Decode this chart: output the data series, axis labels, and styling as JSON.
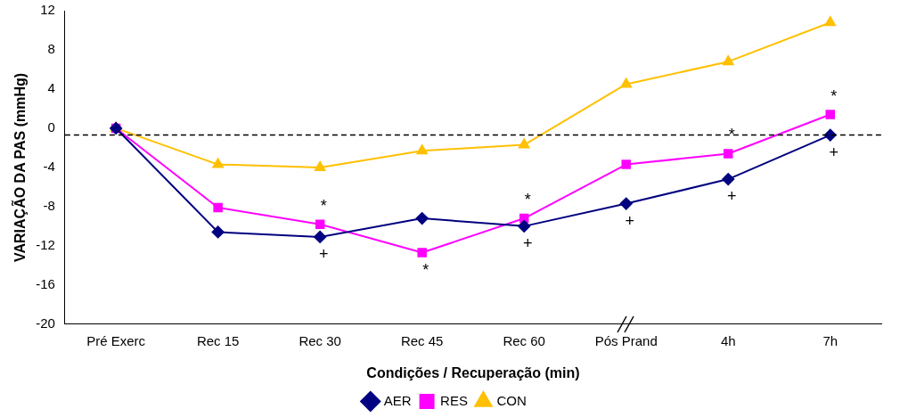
{
  "chart_data": {
    "type": "line",
    "xlabel": "Condições / Recuperação (min)",
    "ylabel": "VARIAÇÃO DA PAS (mmHg)",
    "categories": [
      "Pré Exerc",
      "Rec 15",
      "Rec 30",
      "Rec 45",
      "Rec 60",
      "Pós Prand",
      "4h",
      "7h"
    ],
    "series": [
      {
        "name": "AER",
        "color": "#000080",
        "marker": "diamond",
        "values": [
          0,
          -10.6,
          -11.1,
          -9.2,
          -10.0,
          -7.7,
          -5.2,
          -0.7
        ]
      },
      {
        "name": "RES",
        "color": "#ff00ff",
        "marker": "square",
        "values": [
          0,
          -8.1,
          -9.8,
          -12.7,
          -9.2,
          -3.7,
          -2.6,
          1.4
        ]
      },
      {
        "name": "CON",
        "color": "#ffc000",
        "marker": "triangle",
        "values": [
          0,
          -3.7,
          -4.0,
          -2.3,
          -1.7,
          4.5,
          6.8,
          10.8
        ]
      }
    ],
    "ylim": [
      -20,
      12
    ],
    "yticks": [
      -20,
      -16,
      -12,
      -8,
      -4,
      0,
      4,
      8,
      12
    ],
    "grid": false,
    "legend": "bottom",
    "ref_lines": [
      {
        "axis": "y",
        "value": -0.7,
        "line_style": "dashed",
        "color": "#000000"
      }
    ],
    "annotations": [
      {
        "text": "*",
        "x": "Rec 30",
        "y": -9.8
      },
      {
        "text": "+",
        "x": "Rec 30",
        "y": -11.1
      },
      {
        "text": "*",
        "x": "Rec 45",
        "y": -12.7
      },
      {
        "text": "*",
        "x": "Rec 60",
        "y": -9.2
      },
      {
        "text": "+",
        "x": "Rec 60",
        "y": -10.0
      },
      {
        "text": "+",
        "x": "Pós Prand",
        "y": -7.7
      },
      {
        "text": "*",
        "x": "4h",
        "y": -2.6
      },
      {
        "text": "+",
        "x": "4h",
        "y": -5.2
      },
      {
        "text": "*",
        "x": "7h",
        "y": 1.4
      },
      {
        "text": "+",
        "x": "7h",
        "y": -0.7
      }
    ]
  }
}
